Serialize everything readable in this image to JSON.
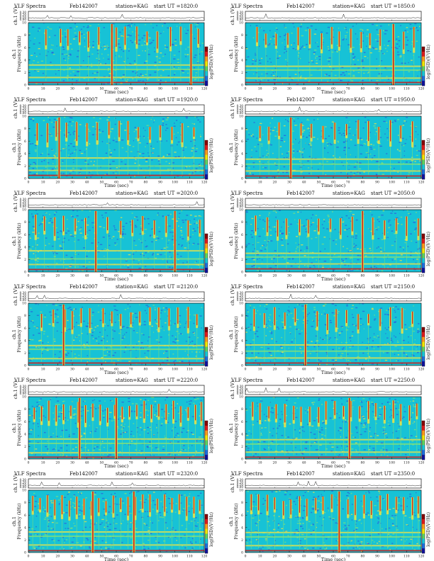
{
  "header": {
    "title": "VLF Spectra",
    "date": "Feb142007",
    "station": "station=KAG",
    "start_prefix": "start  UT  ="
  },
  "axes": {
    "top_ylabel": "ch.1 (V)",
    "top_ticks": [
      "0.30",
      "0.20",
      "0.10",
      "0.00"
    ],
    "freq_ylabel_channel": "ch.1",
    "freq_ylabel": "Frequency  (kHz)",
    "y_ticks": [
      "0",
      "2",
      "4",
      "6",
      "8",
      "10"
    ],
    "x_ticks": [
      "0",
      "10",
      "20",
      "30",
      "40",
      "50",
      "60",
      "70",
      "80",
      "90",
      "100",
      "110",
      "120"
    ],
    "xlabel": "Time  (sec)",
    "colorbar_label": "log(PSD)(V²/Hz)"
  },
  "colors": {
    "background": "#17c2d6",
    "low": "#2b5fd9",
    "mid": "#7fe07a",
    "high": "#e7e24a",
    "peak": "#c81e1e",
    "colorbar": [
      "#8a0000",
      "#e31a1c",
      "#ff9a1a",
      "#f2e600",
      "#5fd35f",
      "#19c7d8",
      "#1d6fe0",
      "#1010a0"
    ]
  },
  "chart_data": [
    {
      "type": "heatmap",
      "start_ut": "1820:0",
      "xlim": [
        0,
        120
      ],
      "ylim": [
        0,
        10
      ],
      "xlabel": "Time  (sec)",
      "ylabel": "Frequency  (kHz)",
      "bursts": [
        12,
        22,
        27,
        35,
        41,
        48,
        57,
        60,
        66,
        74,
        81,
        88,
        97,
        104,
        111,
        116
      ],
      "strong_bursts": [
        57,
        111
      ],
      "bands_khz": [
        0.4,
        1.2,
        2.5,
        3.2
      ]
    },
    {
      "type": "heatmap",
      "start_ut": "1850:0",
      "xlim": [
        0,
        120
      ],
      "ylim": [
        0,
        10
      ],
      "xlabel": "Time  (sec)",
      "ylabel": "Frequency  (kHz)",
      "bursts": [
        8,
        14,
        21,
        29,
        36,
        44,
        52,
        59,
        64,
        72,
        79,
        85,
        92,
        101,
        108,
        115
      ],
      "strong_bursts": [
        101
      ],
      "bands_khz": [
        0.4,
        1.1,
        2.4,
        3.0
      ]
    },
    {
      "type": "heatmap",
      "start_ut": "1920:0",
      "xlim": [
        0,
        120
      ],
      "ylim": [
        0,
        10
      ],
      "xlabel": "Time  (sec)",
      "ylabel": "Frequency  (kHz)",
      "bursts": [
        6,
        13,
        19,
        26,
        33,
        40,
        47,
        55,
        62,
        68,
        75,
        83,
        90,
        98,
        105,
        113
      ],
      "strong_bursts": [
        21
      ],
      "bands_khz": [
        0.5,
        1.3,
        2.0,
        3.3
      ]
    },
    {
      "type": "heatmap",
      "start_ut": "1950:0",
      "xlim": [
        0,
        120
      ],
      "ylim": [
        0,
        10
      ],
      "xlabel": "Time  (sec)",
      "ylabel": "Frequency  (kHz)",
      "bursts": [
        10,
        16,
        23,
        31,
        38,
        45,
        53,
        61,
        69,
        77,
        84,
        91,
        99,
        106,
        114
      ],
      "strong_bursts": [
        31
      ],
      "bands_khz": [
        0.4,
        1.2,
        2.3,
        3.1
      ]
    },
    {
      "type": "heatmap",
      "start_ut": "2020:0",
      "xlim": [
        0,
        120
      ],
      "ylim": [
        0,
        10
      ],
      "xlabel": "Time  (sec)",
      "ylabel": "Frequency  (kHz)",
      "bursts": [
        5,
        11,
        18,
        24,
        32,
        39,
        46,
        54,
        63,
        71,
        78,
        86,
        94,
        100,
        109,
        117
      ],
      "strong_bursts": [
        46,
        100
      ],
      "bands_khz": [
        0.4,
        1.2,
        2.1,
        3.4
      ]
    },
    {
      "type": "heatmap",
      "start_ut": "2050:0",
      "xlim": [
        0,
        120
      ],
      "ylim": [
        0,
        10
      ],
      "xlabel": "Time  (sec)",
      "ylabel": "Frequency  (kHz)",
      "bursts": [
        7,
        15,
        22,
        28,
        37,
        43,
        50,
        58,
        65,
        73,
        80,
        87,
        95,
        103,
        110,
        118
      ],
      "strong_bursts": [
        80
      ],
      "bands_khz": [
        0.5,
        1.3,
        2.4,
        3.0
      ]
    },
    {
      "type": "heatmap",
      "start_ut": "2120:0",
      "xlim": [
        0,
        120
      ],
      "ylim": [
        0,
        10
      ],
      "xlabel": "Time  (sec)",
      "ylabel": "Frequency  (kHz)",
      "bursts": [
        9,
        17,
        25,
        30,
        36,
        42,
        51,
        57,
        63,
        70,
        76,
        83,
        89,
        96,
        102,
        109,
        115
      ],
      "strong_bursts": [
        24
      ],
      "bands_khz": [
        0.4,
        1.1,
        2.6,
        3.2
      ]
    },
    {
      "type": "heatmap",
      "start_ut": "2150:0",
      "xlim": [
        0,
        120
      ],
      "ylim": [
        0,
        10
      ],
      "xlabel": "Time  (sec)",
      "ylabel": "Frequency  (kHz)",
      "bursts": [
        6,
        13,
        20,
        27,
        34,
        41,
        49,
        56,
        62,
        69,
        77,
        84,
        92,
        99,
        107,
        114
      ],
      "strong_bursts": [
        41
      ],
      "bands_khz": [
        0.4,
        1.2,
        2.3,
        3.3
      ]
    },
    {
      "type": "heatmap",
      "start_ut": "2220:0",
      "xlim": [
        0,
        120
      ],
      "ylim": [
        0,
        10
      ],
      "xlabel": "Time  (sec)",
      "ylabel": "Frequency  (kHz)",
      "bursts": [
        4,
        9,
        14,
        19,
        24,
        29,
        34,
        39,
        44,
        49,
        54,
        59,
        64,
        69,
        74,
        79,
        84,
        89,
        94,
        99,
        104,
        109,
        114,
        118
      ],
      "strong_bursts": [
        35,
        60
      ],
      "bands_khz": [
        0.3,
        1.0,
        2.5,
        3.2
      ]
    },
    {
      "type": "heatmap",
      "start_ut": "2250:0",
      "xlim": [
        0,
        120
      ],
      "ylim": [
        0,
        10
      ],
      "xlabel": "Time  (sec)",
      "ylabel": "Frequency  (kHz)",
      "bursts": [
        5,
        10,
        16,
        21,
        27,
        33,
        38,
        44,
        50,
        55,
        61,
        67,
        72,
        78,
        84,
        89,
        95,
        101,
        106,
        112,
        117
      ],
      "strong_bursts": [
        71
      ],
      "bands_khz": [
        0.3,
        1.1,
        2.4,
        3.1
      ]
    },
    {
      "type": "heatmap",
      "start_ut": "2320:0",
      "xlim": [
        0,
        120
      ],
      "ylim": [
        0,
        10
      ],
      "xlabel": "Time  (sec)",
      "ylabel": "Frequency  (kHz)",
      "bursts": [
        3,
        8,
        13,
        18,
        23,
        28,
        33,
        38,
        43,
        48,
        53,
        58,
        63,
        68,
        73,
        78,
        83,
        88,
        93,
        98,
        103,
        108,
        113,
        117
      ],
      "strong_bursts": [
        44,
        72
      ],
      "bands_khz": [
        0.3,
        1.2,
        2.6,
        3.3
      ]
    },
    {
      "type": "heatmap",
      "start_ut": "2350:0",
      "xlim": [
        0,
        120
      ],
      "ylim": [
        0,
        10
      ],
      "xlabel": "Time  (sec)",
      "ylabel": "Frequency  (kHz)",
      "bursts": [
        4,
        9,
        15,
        20,
        26,
        31,
        37,
        42,
        48,
        53,
        59,
        64,
        70,
        75,
        81,
        86,
        92,
        97,
        103,
        108,
        114,
        118
      ],
      "strong_bursts": [
        64
      ],
      "bands_khz": [
        0.3,
        1.1,
        2.5,
        3.2
      ]
    }
  ]
}
